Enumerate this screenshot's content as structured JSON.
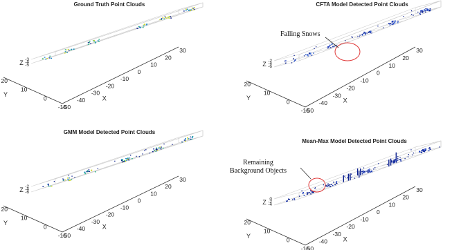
{
  "figure": {
    "background": "#ffffff",
    "box_color": "#cfcfcf",
    "axis_color": "#333333"
  },
  "chart_data": [
    {
      "type": "scatter",
      "title": "Ground Truth Point Clouds",
      "xlabel": "X",
      "ylabel": "Y",
      "zlabel": "Z",
      "xticks": [
        "-50",
        "-40",
        "-30",
        "-20",
        "-10",
        "0",
        "10",
        "20",
        "30"
      ],
      "yticks": [
        "20",
        "10",
        "0",
        "-10"
      ],
      "zticks": [
        "-3",
        "-4",
        "-5"
      ],
      "xlim": [
        -50,
        30
      ],
      "ylim": [
        -15,
        25
      ],
      "zlim": [
        -5,
        -3
      ],
      "grid": true,
      "colormap": [
        "#2b3a9a",
        "#1e88c8",
        "#2fb38a",
        "#d4d92c"
      ],
      "clusters": [
        {
          "x": -48,
          "y": 0,
          "n": 8
        },
        {
          "x": -36,
          "y": 0,
          "n": 12
        },
        {
          "x": -23,
          "y": 0,
          "n": 14
        },
        {
          "x": 3,
          "y": 0,
          "n": 14
        },
        {
          "x": 16,
          "y": 0,
          "n": 14
        },
        {
          "x": 29,
          "y": 0,
          "n": 16
        }
      ],
      "annotation": ""
    },
    {
      "type": "scatter",
      "title": "CFTA Model Detected Point Clouds",
      "xlabel": "X",
      "ylabel": "Y",
      "zlabel": "Z",
      "xticks": [
        "-50",
        "-40",
        "-30",
        "-20",
        "-10",
        "0",
        "10",
        "20",
        "30"
      ],
      "yticks": [
        "20",
        "10",
        "0",
        "-10"
      ],
      "zticks": [
        "-2",
        "-4",
        "-6"
      ],
      "xlim": [
        -50,
        30
      ],
      "ylim": [
        -15,
        25
      ],
      "zlim": [
        -6,
        -2
      ],
      "grid": true,
      "colormap": [
        "#0a1f8f",
        "#1f3fbf",
        "#3d6ad6"
      ],
      "clusters": [
        {
          "x": -48,
          "y": 0,
          "n": 6
        },
        {
          "x": -38,
          "y": 0,
          "n": 10
        },
        {
          "x": -25,
          "y": 0,
          "n": 12
        },
        {
          "x": -5,
          "y": 0,
          "n": 16
        },
        {
          "x": 10,
          "y": 0,
          "n": 20
        },
        {
          "x": 28,
          "y": 0,
          "n": 22
        }
      ],
      "annotation": "Falling Snows"
    },
    {
      "type": "scatter",
      "title": "GMM Model Detected Point Clouds",
      "xlabel": "X",
      "ylabel": "Y",
      "zlabel": "Z",
      "xticks": [
        "-50",
        "-40",
        "-30",
        "-20",
        "-10",
        "0",
        "10",
        "20",
        "30"
      ],
      "yticks": [
        "20",
        "10",
        "0",
        "-10"
      ],
      "zticks": [
        "-2",
        "-4",
        "-6"
      ],
      "xlim": [
        -50,
        30
      ],
      "ylim": [
        -15,
        25
      ],
      "zlim": [
        -6,
        -2
      ],
      "grid": true,
      "colormap": [
        "#0a1f8f",
        "#1e88c8",
        "#2fb38a",
        "#d4d92c"
      ],
      "clusters": [
        {
          "x": -48,
          "y": 0,
          "n": 6
        },
        {
          "x": -38,
          "y": 0,
          "n": 10
        },
        {
          "x": -25,
          "y": 0,
          "n": 12
        },
        {
          "x": -5,
          "y": 0,
          "n": 20
        },
        {
          "x": 12,
          "y": 0,
          "n": 18
        },
        {
          "x": 28,
          "y": 0,
          "n": 16
        }
      ],
      "annotation": ""
    },
    {
      "type": "scatter",
      "title": "Mean-Max Model Detected Point Clouds",
      "xlabel": "X",
      "ylabel": "Y",
      "zlabel": "Z",
      "xticks": [
        "-50",
        "-40",
        "-30",
        "-20",
        "-10",
        "0",
        "10",
        "20",
        "30"
      ],
      "yticks": [
        "20",
        "10",
        "0",
        "-10"
      ],
      "zticks": [
        "0",
        "-2",
        "-4"
      ],
      "xlim": [
        -50,
        30
      ],
      "ylim": [
        -15,
        25
      ],
      "zlim": [
        -4,
        0
      ],
      "grid": true,
      "colormap": [
        "#0a1f8f",
        "#1f3fbf"
      ],
      "clusters": [
        {
          "x": -48,
          "y": 0,
          "n": 6
        },
        {
          "x": -38,
          "y": 0,
          "n": 12
        },
        {
          "x": -25,
          "y": 0,
          "n": 16
        },
        {
          "x": -5,
          "y": 0,
          "n": 22
        },
        {
          "x": 12,
          "y": 0,
          "n": 26
        },
        {
          "x": 28,
          "y": 0,
          "n": 24
        }
      ],
      "annotation": "Remaining\nBackground Objects"
    }
  ]
}
